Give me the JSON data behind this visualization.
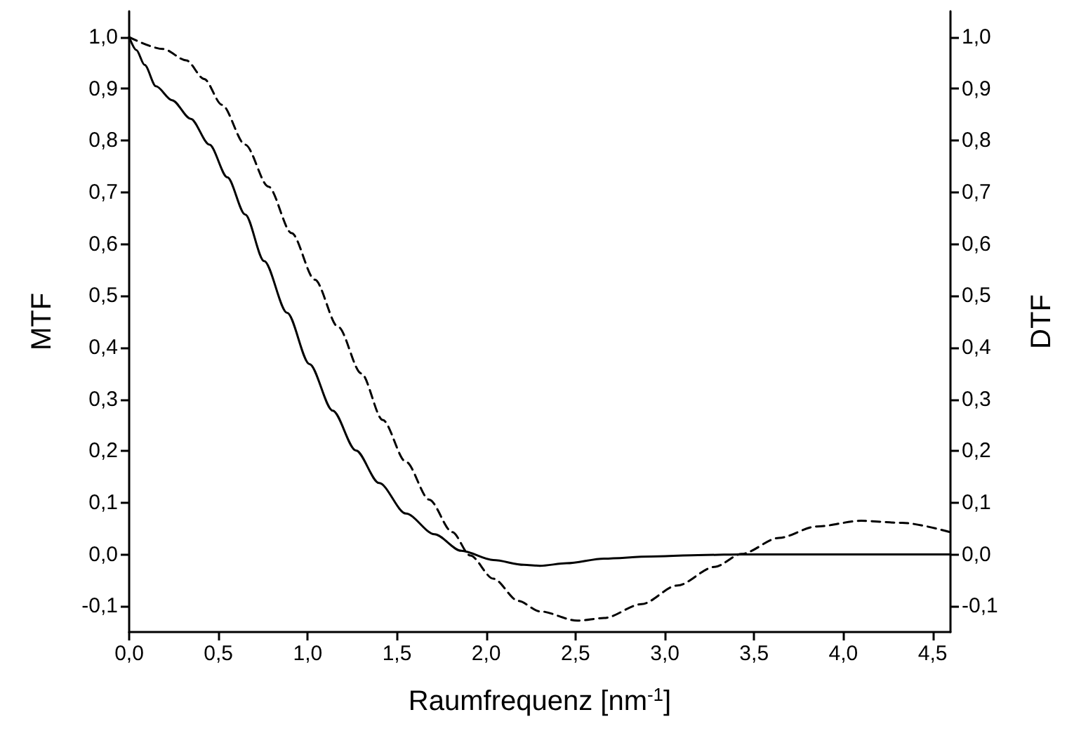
{
  "chart_data": {
    "type": "line",
    "xlabel": "Raumfrequenz [nm$^{-1}$]",
    "ylabel": "MTF",
    "y2label": "DTF",
    "xlim": [
      0,
      4.6
    ],
    "xticks": [
      {
        "value": 0,
        "label": "0,0"
      },
      {
        "value": 0.5,
        "label": "0,5"
      },
      {
        "value": 1,
        "label": "1,0"
      },
      {
        "value": 1.5,
        "label": "1,5"
      },
      {
        "value": 2,
        "label": "2,0"
      },
      {
        "value": 2.5,
        "label": "2,5"
      },
      {
        "value": 3,
        "label": "3,0"
      },
      {
        "value": 3.5,
        "label": "3,5"
      },
      {
        "value": 4,
        "label": "4,0"
      },
      {
        "value": 4.5,
        "label": "4,5"
      }
    ],
    "ylim": [
      -0.15,
      1.05
    ],
    "yticks": [
      {
        "value": -0.1,
        "label": "-0,1"
      },
      {
        "value": 0,
        "label": "0,0"
      },
      {
        "value": 0.1,
        "label": "0,1"
      },
      {
        "value": 0.2,
        "label": "0,2"
      },
      {
        "value": 0.3,
        "label": "0,3"
      },
      {
        "value": 0.4,
        "label": "0,4"
      },
      {
        "value": 0.5,
        "label": "0,5"
      },
      {
        "value": 0.6,
        "label": "0,6"
      },
      {
        "value": 0.7,
        "label": "0,7"
      },
      {
        "value": 0.8,
        "label": "0,8"
      },
      {
        "value": 0.9,
        "label": "0,9"
      },
      {
        "value": 1,
        "label": "1,0"
      }
    ],
    "y2lim": [
      -0.15,
      1.05
    ],
    "y2ticks": [
      {
        "value": -0.1,
        "label": "-0,1"
      },
      {
        "value": 0,
        "label": "0,0"
      },
      {
        "value": 0.1,
        "label": "0,1"
      },
      {
        "value": 0.2,
        "label": "0,2"
      },
      {
        "value": 0.3,
        "label": "0,3"
      },
      {
        "value": 0.4,
        "label": "0,4"
      },
      {
        "value": 0.5,
        "label": "0,5"
      },
      {
        "value": 0.6,
        "label": "0,6"
      },
      {
        "value": 0.7,
        "label": "0,7"
      },
      {
        "value": 0.8,
        "label": "0,8"
      },
      {
        "value": 0.9,
        "label": "0,9"
      },
      {
        "value": 1,
        "label": "1,0"
      }
    ],
    "grid": false,
    "marker": "none",
    "series": [
      {
        "color": "#000000",
        "line_style": "solid",
        "x": [
          0,
          0.04,
          0.087,
          0.15,
          0.24,
          0.345,
          0.45,
          0.55,
          0.65,
          0.756,
          0.885,
          1.01,
          1.14,
          1.27,
          1.4,
          1.55,
          1.71,
          1.86,
          2.04,
          2.21,
          2.3,
          2.45,
          2.66,
          2.92,
          3.23,
          3.43,
          4.6
        ],
        "values": [
          1.0,
          0.975,
          0.946,
          0.905,
          0.878,
          0.842,
          0.792,
          0.729,
          0.657,
          0.567,
          0.467,
          0.368,
          0.278,
          0.201,
          0.138,
          0.079,
          0.039,
          0.007,
          -0.011,
          -0.02,
          -0.022,
          -0.017,
          -0.008,
          -0.004,
          -0.001,
          0,
          0
        ]
      },
      {
        "color": "#000000",
        "line_style": "dashed",
        "x": [
          0,
          0.19,
          0.32,
          0.42,
          0.52,
          0.65,
          0.78,
          0.91,
          1.04,
          1.17,
          1.3,
          1.42,
          1.55,
          1.68,
          1.81,
          1.91,
          2.04,
          2.18,
          2.3,
          2.51,
          2.66,
          2.87,
          3.07,
          3.28,
          3.43,
          3.64,
          3.85,
          4.1,
          4.33,
          4.6
        ],
        "values": [
          1.0,
          0.977,
          0.955,
          0.919,
          0.869,
          0.792,
          0.711,
          0.621,
          0.531,
          0.44,
          0.35,
          0.26,
          0.179,
          0.106,
          0.043,
          -0.002,
          -0.047,
          -0.09,
          -0.11,
          -0.128,
          -0.123,
          -0.096,
          -0.06,
          -0.024,
          0.001,
          0.032,
          0.054,
          0.065,
          0.061,
          0.043
        ]
      }
    ]
  }
}
